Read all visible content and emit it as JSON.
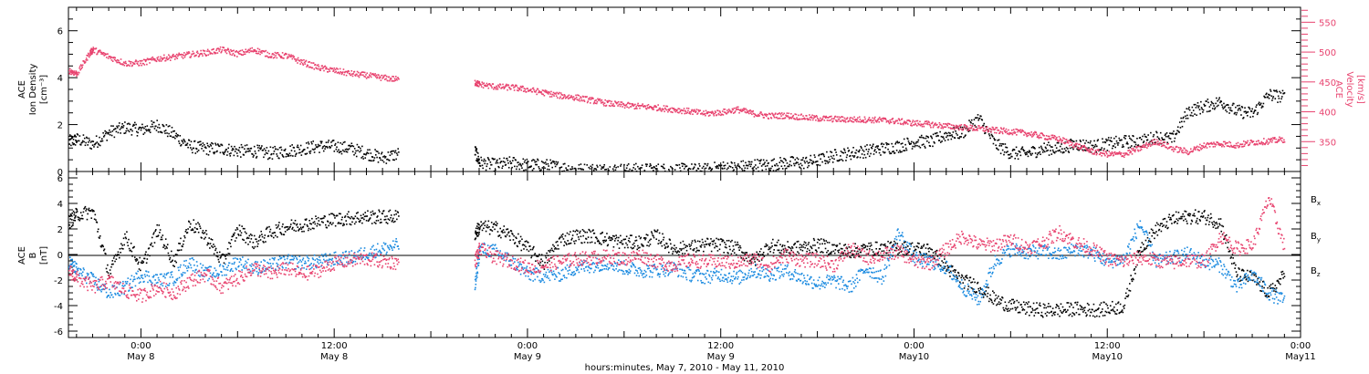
{
  "chart_data": [
    {
      "type": "scatter",
      "title": "",
      "ylabel_left_lines": [
        "ACE",
        "Ion Density",
        "[cm⁻³]"
      ],
      "ylabel_right_lines": [
        "ACE",
        "Velocity",
        "[km/s]"
      ],
      "ylim_left": [
        0,
        7
      ],
      "ylim_right": [
        300,
        575
      ],
      "yticks_left": [
        0,
        2,
        4,
        6
      ],
      "yticks_right": [
        350,
        400,
        450,
        500,
        550
      ],
      "x_unit": "hours since 2010-05-07 00:00",
      "xlim": [
        19.5,
        96
      ],
      "gap": [
        40.5,
        44.5
      ],
      "series": [
        {
          "name": "",
          "axis": "left",
          "color": "#000000",
          "x": [
            19.5,
            20,
            21,
            22,
            23,
            24,
            25,
            26,
            27,
            28,
            29,
            30,
            31,
            32,
            33,
            34,
            35,
            36,
            37,
            38,
            39,
            40,
            44.7,
            45,
            46,
            47,
            48,
            49,
            50,
            51,
            52,
            53,
            54,
            55,
            56,
            57,
            58,
            59,
            60,
            61,
            62,
            63,
            64,
            65,
            66,
            67,
            68,
            69,
            70,
            71,
            72,
            73,
            74,
            75,
            76,
            77,
            78,
            79,
            80,
            81,
            82,
            83,
            84,
            85,
            86,
            87,
            88,
            89,
            90,
            91,
            92,
            93,
            94,
            95
          ],
          "y": [
            1.3,
            1.4,
            1.2,
            1.7,
            1.9,
            1.8,
            2.0,
            1.6,
            1.1,
            1.0,
            1.0,
            0.9,
            0.9,
            0.8,
            0.9,
            1.0,
            1.1,
            1.1,
            1.0,
            0.8,
            0.6,
            0.8,
            0.9,
            0.4,
            0.3,
            0.4,
            0.3,
            0.3,
            0.2,
            0.1,
            0.1,
            0.1,
            0.1,
            0.1,
            0.1,
            0.1,
            0.1,
            0.1,
            0.2,
            0.2,
            0.3,
            0.3,
            0.4,
            0.4,
            0.5,
            0.7,
            0.8,
            0.9,
            1.0,
            1.1,
            1.3,
            1.3,
            1.6,
            1.7,
            2.3,
            1.2,
            0.8,
            0.8,
            1.0,
            1.0,
            1.2,
            1.1,
            1.2,
            1.3,
            1.3,
            1.5,
            1.4,
            2.6,
            2.8,
            3.0,
            2.6,
            2.5,
            3.3,
            3.2
          ]
        },
        {
          "name": "",
          "axis": "right",
          "color": "#e8436f",
          "x": [
            19.5,
            20,
            20.8,
            21,
            22,
            23,
            24,
            25,
            26,
            27,
            28,
            29,
            30,
            31,
            32,
            33,
            34,
            35,
            36,
            37,
            38,
            39,
            40,
            44.7,
            45,
            46,
            47,
            48,
            49,
            50,
            51,
            52,
            53,
            54,
            55,
            56,
            57,
            58,
            59,
            60,
            61,
            62,
            63,
            64,
            65,
            66,
            67,
            68,
            69,
            70,
            71,
            72,
            73,
            74,
            75,
            76,
            77,
            78,
            79,
            80,
            81,
            82,
            83,
            84,
            85,
            86,
            87,
            88,
            89,
            90,
            91,
            92,
            93,
            94,
            95
          ],
          "y": [
            470,
            465,
            500,
            505,
            493,
            482,
            483,
            490,
            493,
            497,
            500,
            505,
            498,
            505,
            496,
            495,
            484,
            475,
            470,
            465,
            462,
            458,
            455,
            450,
            447,
            443,
            442,
            438,
            433,
            428,
            425,
            420,
            415,
            412,
            410,
            408,
            405,
            402,
            398,
            400,
            405,
            398,
            394,
            395,
            392,
            390,
            389,
            388,
            388,
            387,
            385,
            382,
            380,
            377,
            375,
            373,
            370,
            368,
            365,
            360,
            355,
            345,
            335,
            330,
            330,
            340,
            352,
            340,
            334,
            345,
            348,
            345,
            350,
            352,
            355
          ]
        }
      ]
    },
    {
      "type": "scatter",
      "title": "",
      "ylabel_lines": [
        "ACE",
        "B",
        "[nT]"
      ],
      "ylim": [
        -6.5,
        6.5
      ],
      "yticks": [
        -6,
        -4,
        -2,
        0,
        2,
        4,
        6
      ],
      "x_unit": "hours since 2010-05-07 00:00",
      "xlim": [
        19.5,
        96
      ],
      "gap": [
        40.5,
        44.5
      ],
      "series": [
        {
          "name": "Bx",
          "color": "#000000",
          "x": [
            19.5,
            20,
            21,
            22,
            23,
            24,
            25,
            26,
            27,
            28,
            29,
            30,
            31,
            32,
            33,
            34,
            35,
            36,
            37,
            38,
            39,
            40,
            44.7,
            45,
            46,
            47,
            48,
            49,
            50,
            51,
            52,
            53,
            54,
            55,
            56,
            57,
            58,
            59,
            60,
            61,
            62,
            63,
            64,
            65,
            66,
            67,
            68,
            69,
            70,
            71,
            72,
            73,
            74,
            75,
            76,
            77,
            78,
            79,
            80,
            81,
            82,
            83,
            84,
            85,
            86,
            87,
            88,
            89,
            90,
            91,
            92,
            93,
            94,
            95
          ],
          "y": [
            2.6,
            3.2,
            3.4,
            -1.5,
            1.5,
            -1.0,
            2.0,
            -0.5,
            2.5,
            1.5,
            -0.5,
            2.0,
            1.0,
            1.8,
            2.2,
            2.4,
            2.6,
            2.8,
            2.9,
            3.0,
            3.0,
            3.0,
            1.7,
            2.2,
            2.1,
            1.5,
            0.5,
            -0.6,
            1.2,
            1.5,
            1.5,
            1.2,
            1.0,
            1.0,
            1.5,
            0.5,
            0.6,
            0.8,
            0.8,
            0.5,
            -0.5,
            0.8,
            0.5,
            0.6,
            0.8,
            0.5,
            0.3,
            0.5,
            0.5,
            0.6,
            0.5,
            0.4,
            -1.0,
            -2.0,
            -2.5,
            -3.5,
            -4.0,
            -4.2,
            -4.3,
            -4.3,
            -4.2,
            -4.3,
            -4.2,
            -4.0,
            0.5,
            2.0,
            2.8,
            3.0,
            3.0,
            2.5,
            -1.5,
            -1.8,
            -3.0,
            -1.5
          ]
        },
        {
          "name": "By",
          "color": "#1a8ae0",
          "x": [
            19.5,
            20,
            21,
            22,
            23,
            24,
            25,
            26,
            27,
            28,
            29,
            30,
            31,
            32,
            33,
            34,
            35,
            36,
            37,
            38,
            39,
            40,
            44.7,
            45,
            46,
            47,
            48,
            49,
            50,
            51,
            52,
            53,
            54,
            55,
            56,
            57,
            58,
            59,
            60,
            61,
            62,
            63,
            64,
            65,
            66,
            67,
            68,
            69,
            70,
            71,
            72,
            73,
            74,
            75,
            76,
            77,
            78,
            79,
            80,
            81,
            82,
            83,
            84,
            85,
            86,
            87,
            88,
            89,
            90,
            91,
            92,
            93,
            94,
            95
          ],
          "y": [
            -0.5,
            -1.2,
            -2.0,
            -3.0,
            -2.5,
            -1.5,
            -2.0,
            -1.8,
            -0.5,
            -1.5,
            -1.2,
            -0.5,
            -1.0,
            -0.8,
            -0.5,
            -0.6,
            -0.5,
            -0.3,
            -0.2,
            0.2,
            0.5,
            0.8,
            -2.5,
            0.5,
            0.3,
            -0.5,
            -1.5,
            -1.6,
            -1.5,
            -1.0,
            -0.8,
            -0.6,
            -1.0,
            -1.2,
            -1.2,
            -1.0,
            -1.5,
            -1.7,
            -1.5,
            -1.8,
            -1.2,
            -1.5,
            -1.2,
            -1.8,
            -2.2,
            -2.0,
            -2.5,
            -1.0,
            -1.8,
            1.8,
            -0.3,
            -0.5,
            -1.0,
            -2.5,
            -3.5,
            -0.5,
            0.5,
            0.2,
            0.3,
            0.0,
            0.5,
            0.2,
            -0.5,
            -0.3,
            2.5,
            -0.5,
            -0.2,
            0.1,
            -0.5,
            -0.8,
            -2.5,
            -1.5,
            -3.0,
            -3.6
          ]
        },
        {
          "name": "Bz",
          "color": "#e8436f",
          "x": [
            19.5,
            20,
            21,
            22,
            23,
            24,
            25,
            26,
            27,
            28,
            29,
            30,
            31,
            32,
            33,
            34,
            35,
            36,
            37,
            38,
            39,
            40,
            44.7,
            45,
            46,
            47,
            48,
            49,
            50,
            51,
            52,
            53,
            54,
            55,
            56,
            57,
            58,
            59,
            60,
            61,
            62,
            63,
            64,
            65,
            66,
            67,
            68,
            69,
            70,
            71,
            72,
            73,
            74,
            75,
            76,
            77,
            78,
            79,
            80,
            81,
            82,
            83,
            84,
            85,
            86,
            87,
            88,
            89,
            90,
            91,
            92,
            93,
            94,
            95
          ],
          "y": [
            -1.2,
            -1.8,
            -2.5,
            -2.0,
            -2.8,
            -3.2,
            -2.5,
            -3.0,
            -2.0,
            -1.5,
            -2.5,
            -1.8,
            -1.0,
            -1.5,
            -1.0,
            -1.5,
            -1.2,
            -0.6,
            -0.4,
            -0.3,
            -0.5,
            -0.6,
            -0.5,
            0.5,
            -0.2,
            -0.5,
            -1.0,
            -0.8,
            -0.5,
            -0.3,
            -0.2,
            -0.1,
            -0.3,
            0.0,
            -0.5,
            -0.8,
            -0.4,
            -0.5,
            -0.5,
            -0.6,
            -0.3,
            -0.8,
            0.0,
            -0.4,
            -0.4,
            -0.8,
            0.5,
            -0.2,
            0.0,
            0.3,
            -0.5,
            -0.6,
            0.5,
            1.5,
            0.8,
            0.8,
            1.2,
            0.6,
            1.0,
            1.8,
            1.0,
            0.5,
            -0.3,
            -0.5,
            -0.2,
            -0.4,
            -0.6,
            -0.4,
            -0.5,
            1.5,
            0.5,
            0.8,
            4.5,
            0.5
          ]
        }
      ],
      "legend_labels": [
        {
          "main": "B",
          "sub": "x",
          "color": "#000000"
        },
        {
          "main": "B",
          "sub": "y",
          "color": "#1a8ae0"
        },
        {
          "main": "B",
          "sub": "z",
          "color": "#e8436f"
        }
      ]
    }
  ],
  "x_axis": {
    "xlabel": "hours:minutes, May  7, 2010 - May 11, 2010",
    "ticks": [
      {
        "hour": 24,
        "time": "0:00",
        "date": "May 8"
      },
      {
        "hour": 36,
        "time": "12:00",
        "date": "May 8"
      },
      {
        "hour": 48,
        "time": "0:00",
        "date": "May 9"
      },
      {
        "hour": 60,
        "time": "12:00",
        "date": "May 9"
      },
      {
        "hour": 72,
        "time": "0:00",
        "date": "May10"
      },
      {
        "hour": 84,
        "time": "12:00",
        "date": "May10"
      },
      {
        "hour": 96,
        "time": "0:00",
        "date": "May11"
      }
    ]
  }
}
